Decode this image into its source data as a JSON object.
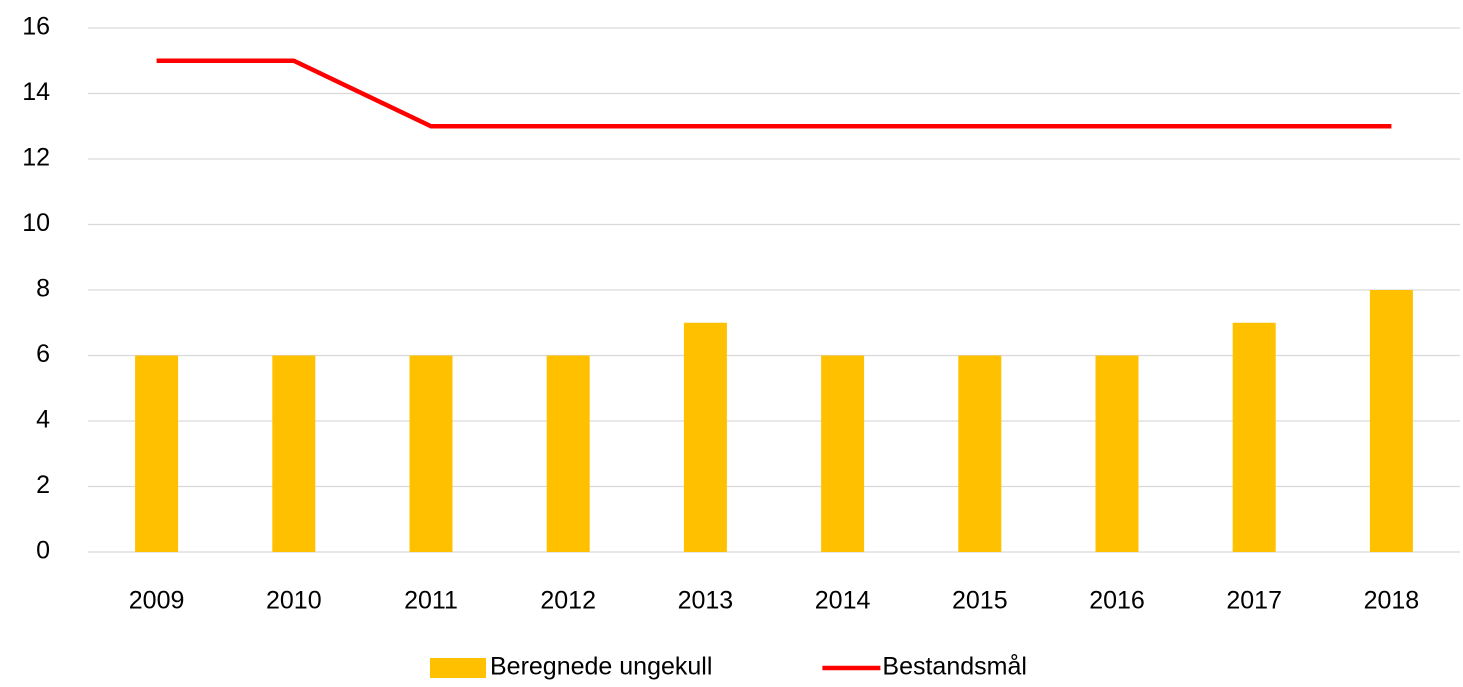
{
  "chart_data": {
    "type": "bar",
    "categories": [
      "2009",
      "2010",
      "2011",
      "2012",
      "2013",
      "2014",
      "2015",
      "2016",
      "2017",
      "2018"
    ],
    "series": [
      {
        "name": "Beregnede ungekull",
        "type": "bar",
        "color": "#ffc000",
        "values": [
          6,
          6,
          6,
          6,
          7,
          6,
          6,
          6,
          7,
          8
        ]
      },
      {
        "name": "Bestandsmål",
        "type": "line",
        "color": "#ff0000",
        "values": [
          15,
          15,
          13,
          13,
          13,
          13,
          13,
          13,
          13,
          13
        ]
      }
    ],
    "ylim": [
      0,
      16
    ],
    "yticks": [
      0,
      2,
      4,
      6,
      8,
      10,
      12,
      14,
      16
    ],
    "grid": true,
    "legend": "bottom"
  }
}
